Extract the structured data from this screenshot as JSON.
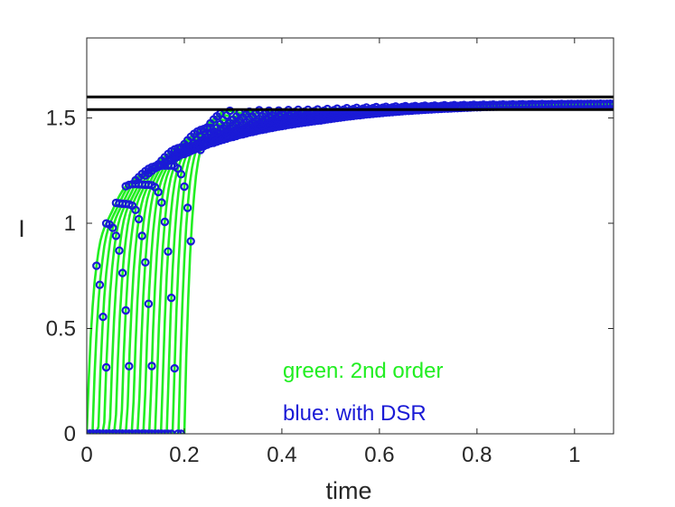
{
  "chart_data": {
    "type": "line",
    "title": "",
    "xlabel": "time",
    "ylabel": "I",
    "xlim": [
      0,
      1.08
    ],
    "ylim": [
      0,
      1.88
    ],
    "xticks": [
      0,
      0.2,
      0.4,
      0.6,
      0.8,
      1
    ],
    "xtick_labels": [
      "0",
      "0.2",
      "0.4",
      "0.6",
      "0.8",
      "1"
    ],
    "yticks": [
      0,
      0.5,
      1,
      1.5
    ],
    "ytick_labels": [
      "0",
      "0.5",
      "1",
      "1.5"
    ],
    "grid": false,
    "reference_lines": [
      {
        "y": 1.6,
        "color": "#000000"
      },
      {
        "y": 1.54,
        "color": "#000000"
      }
    ],
    "series_colors": {
      "second_order": "#22ee22",
      "with_dsr": "#1a1ad6"
    },
    "families": {
      "count": 18,
      "onset_start": 0.0,
      "onset_end": 0.2,
      "plateau": 1.56,
      "settle_time": 0.48,
      "settle_value": 1.55
    },
    "series": [
      {
        "name": "green: 2nd order",
        "color": "#22ee22",
        "style": "line"
      },
      {
        "name": "blue: with DSR",
        "color": "#1a1ad6",
        "style": "circles"
      }
    ]
  },
  "annotations": {
    "green_label": "green: 2nd order",
    "blue_label": "blue: with DSR"
  }
}
